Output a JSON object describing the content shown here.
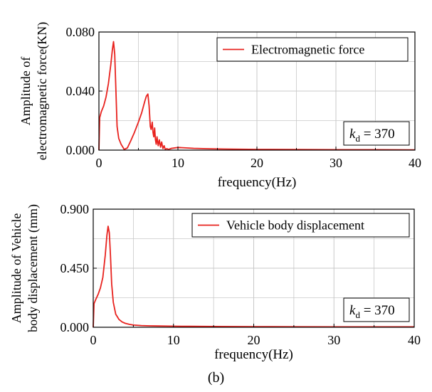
{
  "caption": "(b)",
  "colors": {
    "series": "#e8221e",
    "axis": "#000000",
    "grid": "#c8c8c8"
  },
  "chart_data": [
    {
      "type": "line",
      "ylabel_lines": [
        "Amplitude of",
        "electromagnetic force(KN)"
      ],
      "xlabel": "frequency(Hz)",
      "xlim": [
        0,
        40
      ],
      "ylim": [
        0,
        0.08
      ],
      "xticks": [
        "0",
        "10",
        "20",
        "30",
        "40"
      ],
      "yticks": [
        "0.000",
        "0.040",
        "0.080"
      ],
      "legend": "Electromagnetic force",
      "legend_position": "top-right",
      "annotation": {
        "symbol": "k",
        "subscript": "d",
        "text": " = 370"
      },
      "grid": true,
      "series": [
        {
          "name": "Electromagnetic force",
          "x": [
            0,
            0.1,
            0.3,
            0.6,
            0.9,
            1.2,
            1.5,
            1.7,
            1.85,
            2.0,
            2.15,
            2.3,
            2.5,
            2.8,
            3.2,
            3.6,
            4.0,
            4.5,
            5.0,
            5.4,
            5.8,
            6.0,
            6.2,
            6.35,
            6.5,
            6.6,
            6.75,
            6.85,
            6.95,
            7.05,
            7.15,
            7.25,
            7.35,
            7.5,
            7.65,
            7.8,
            7.95,
            8.1,
            8.25,
            8.4,
            8.6,
            8.8,
            9.2,
            10,
            11,
            12,
            14,
            16,
            20,
            25,
            30,
            35,
            40
          ],
          "y": [
            0.0,
            0.022,
            0.026,
            0.03,
            0.036,
            0.045,
            0.058,
            0.068,
            0.0735,
            0.065,
            0.04,
            0.016,
            0.008,
            0.004,
            0.0005,
            0.0015,
            0.006,
            0.012,
            0.019,
            0.025,
            0.033,
            0.0365,
            0.038,
            0.03,
            0.016,
            0.014,
            0.019,
            0.012,
            0.009,
            0.015,
            0.007,
            0.004,
            0.009,
            0.003,
            0.007,
            0.002,
            0.0055,
            0.001,
            0.003,
            0.0005,
            0.001,
            0.0005,
            0.0012,
            0.0018,
            0.0015,
            0.0012,
            0.0009,
            0.0007,
            0.0005,
            0.0004,
            0.0003,
            0.0003,
            0.0002
          ]
        }
      ]
    },
    {
      "type": "line",
      "ylabel_lines": [
        "Amplitude of Vehicle",
        "body displacement (mm)"
      ],
      "xlabel": "frequency(Hz)",
      "xlim": [
        0,
        40
      ],
      "ylim": [
        0,
        0.9
      ],
      "xticks": [
        "0",
        "10",
        "20",
        "30",
        "40"
      ],
      "yticks": [
        "0.000",
        "0.450",
        "0.900"
      ],
      "legend": "Vehicle body displacement",
      "legend_position": "top-right",
      "annotation": {
        "symbol": "k",
        "subscript": "d",
        "text": " = 370"
      },
      "grid": true,
      "series": [
        {
          "name": "Vehicle body displacement",
          "x": [
            0,
            0.1,
            0.3,
            0.6,
            0.9,
            1.2,
            1.5,
            1.7,
            1.85,
            2.0,
            2.15,
            2.3,
            2.5,
            2.8,
            3.2,
            3.6,
            4.0,
            4.5,
            5.0,
            6.0,
            7.0,
            8.0,
            10,
            12,
            15,
            20,
            25,
            30,
            35,
            40
          ],
          "y": [
            0.0,
            0.18,
            0.21,
            0.25,
            0.3,
            0.38,
            0.55,
            0.7,
            0.77,
            0.72,
            0.55,
            0.33,
            0.19,
            0.1,
            0.06,
            0.04,
            0.03,
            0.022,
            0.017,
            0.013,
            0.011,
            0.01,
            0.008,
            0.007,
            0.006,
            0.005,
            0.004,
            0.0035,
            0.003,
            0.003
          ]
        }
      ]
    }
  ]
}
